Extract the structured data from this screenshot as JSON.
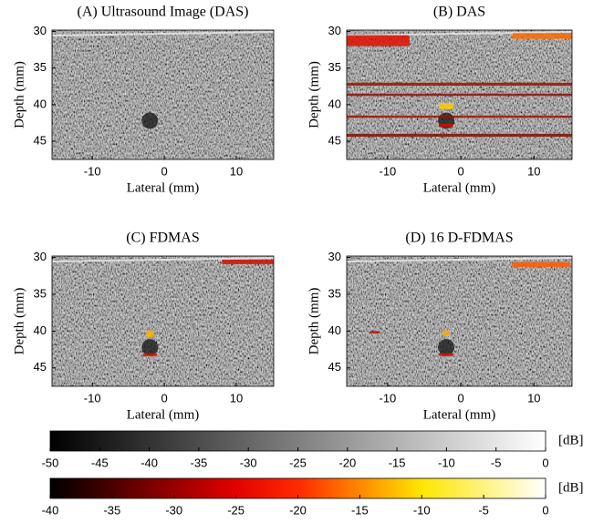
{
  "chart_data": [
    {
      "type": "image",
      "title": "(A) Ultrasound Image (DAS)",
      "x_label": "Lateral (mm)",
      "y_label": "Depth (mm)",
      "xlim": [
        -15.6,
        15.2
      ],
      "ylim": [
        29.8,
        47.5
      ],
      "y_inverted": true,
      "xticks": [
        -10,
        0,
        10
      ],
      "yticks": [
        30,
        35,
        40,
        45
      ]
    },
    {
      "type": "image",
      "title": "(B) DAS",
      "x_label": "Lateral (mm)",
      "y_label": "Depth (mm)",
      "xlim": [
        -15.6,
        15.2
      ],
      "ylim": [
        29.8,
        47.5
      ],
      "y_inverted": true,
      "xticks": [
        -10,
        0,
        10
      ],
      "yticks": [
        30,
        35,
        40,
        45
      ]
    },
    {
      "type": "image",
      "title": "(C) FDMAS",
      "x_label": "Lateral (mm)",
      "y_label": "Depth (mm)",
      "xlim": [
        -15.6,
        15.2
      ],
      "ylim": [
        29.8,
        47.5
      ],
      "y_inverted": true,
      "xticks": [
        -10,
        0,
        10
      ],
      "yticks": [
        30,
        35,
        40,
        45
      ]
    },
    {
      "type": "image",
      "title": "(D) 16 D-FDMAS",
      "x_label": "Lateral (mm)",
      "y_label": "Depth (mm)",
      "xlim": [
        -15.6,
        15.2
      ],
      "ylim": [
        29.8,
        47.5
      ],
      "y_inverted": true,
      "xticks": [
        -10,
        0,
        10
      ],
      "yticks": [
        30,
        35,
        40,
        45
      ]
    },
    {
      "type": "colorbar",
      "label": "[dB]",
      "colormap": "gray",
      "xlim": [
        -50,
        0
      ],
      "xticks": [
        -50,
        -45,
        -40,
        -35,
        -30,
        -25,
        -20,
        -15,
        -10,
        -5,
        0
      ]
    },
    {
      "type": "colorbar",
      "label": "[dB]",
      "colormap": "hot",
      "xlim": [
        -40,
        0
      ],
      "xticks": [
        -40,
        -35,
        -30,
        -25,
        -20,
        -15,
        -10,
        -5,
        0
      ]
    }
  ]
}
